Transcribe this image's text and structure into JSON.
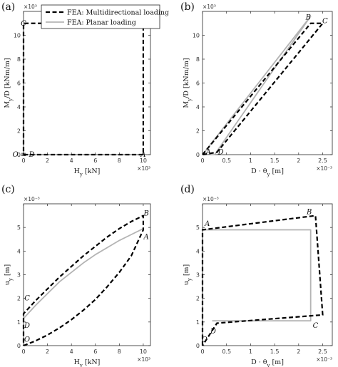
{
  "legend": {
    "entries": [
      {
        "label": "FEA: Multidirectional loading",
        "color": "#000000",
        "style": "dashed"
      },
      {
        "label": "FEA: Planar loading",
        "color": "#b4b4b4",
        "style": "solid"
      }
    ],
    "placement": "top-center"
  },
  "chart_data": [
    {
      "type": "line",
      "panel_label": "(a)",
      "xlabel": "H_y [kN]",
      "ylabel": "M_y/D [kNm/m]",
      "xlim": [
        0,
        10.6
      ],
      "ylim": [
        0,
        12
      ],
      "x_exponent": "×10³",
      "y_exponent": "×10³",
      "xticks": [
        0,
        2,
        4,
        6,
        8,
        10
      ],
      "yticks": [
        0,
        2,
        4,
        6,
        8,
        10
      ],
      "series": [
        {
          "name": "FEA: Multidirectional loading",
          "x": [
            0,
            10,
            10,
            0,
            0
          ],
          "y": [
            0,
            0,
            11,
            11,
            0
          ]
        }
      ],
      "annotations": [
        {
          "text": "C",
          "x": 0,
          "y": 11
        },
        {
          "text": "B",
          "x": 10,
          "y": 11
        },
        {
          "text": "O ≡ D",
          "x": 0,
          "y": 0
        },
        {
          "text": "A",
          "x": 10,
          "y": 0
        }
      ]
    },
    {
      "type": "line",
      "panel_label": "(b)",
      "xlabel": "D · θ_y [m]",
      "ylabel": "M_y/D [kNm/m]",
      "xlim": [
        0,
        2.7
      ],
      "ylim": [
        0,
        12
      ],
      "x_exponent": "×10⁻³",
      "y_exponent": "×10³",
      "xticks": [
        0,
        0.5,
        1,
        1.5,
        2,
        2.5
      ],
      "yticks": [
        0,
        2,
        4,
        6,
        8,
        10
      ],
      "series": [
        {
          "name": "FEA: Multidirectional loading",
          "x": [
            0,
            2.25,
            2.5,
            0.3,
            0
          ],
          "y": [
            0,
            11,
            11,
            0.2,
            0
          ]
        },
        {
          "name": "FEA: Planar loading",
          "x": [
            0,
            2.25,
            0.25,
            0
          ],
          "y": [
            0,
            11.6,
            0,
            0
          ]
        }
      ],
      "annotations": [
        {
          "text": "B",
          "x": 2.2,
          "y": 11.5
        },
        {
          "text": "C",
          "x": 2.55,
          "y": 11.2
        },
        {
          "text": "A",
          "x": 0.12,
          "y": 0.2
        },
        {
          "text": "D",
          "x": 0.38,
          "y": 0.2
        }
      ]
    },
    {
      "type": "line",
      "panel_label": "(c)",
      "xlabel": "H_y [kN]",
      "ylabel": "u_y [m]",
      "xlim": [
        0,
        10.6
      ],
      "ylim": [
        0,
        6
      ],
      "x_exponent": "×10³",
      "y_exponent": "×10⁻³",
      "xticks": [
        0,
        2,
        4,
        6,
        8,
        10
      ],
      "yticks": [
        0,
        1,
        2,
        3,
        4,
        5
      ],
      "series": [
        {
          "name": "FEA: Multidirectional loading",
          "x": [
            0,
            1,
            2,
            3,
            4,
            5,
            6,
            7,
            8,
            9,
            10,
            10,
            9,
            8,
            7,
            6,
            5,
            4,
            3,
            2,
            1,
            0,
            0
          ],
          "y": [
            0,
            0.2,
            0.45,
            0.75,
            1.1,
            1.5,
            1.95,
            2.5,
            3.1,
            3.8,
            4.9,
            5.5,
            5.25,
            4.95,
            4.6,
            4.2,
            3.8,
            3.35,
            2.9,
            2.4,
            1.9,
            1.35,
            0
          ]
        },
        {
          "name": "FEA: Planar loading",
          "x": [
            0,
            1,
            2,
            3,
            4,
            5,
            6,
            7,
            8,
            9,
            10
          ],
          "y": [
            1.15,
            1.7,
            2.2,
            2.7,
            3.1,
            3.5,
            3.85,
            4.15,
            4.45,
            4.7,
            4.95
          ]
        }
      ],
      "annotations": [
        {
          "text": "B",
          "x": 10.25,
          "y": 5.6
        },
        {
          "text": "A",
          "x": 10.25,
          "y": 4.6
        },
        {
          "text": "C",
          "x": 0.3,
          "y": 2.0
        },
        {
          "text": "D",
          "x": 0.3,
          "y": 0.85
        },
        {
          "text": "O",
          "x": 0.3,
          "y": 0.25
        }
      ]
    },
    {
      "type": "line",
      "panel_label": "(d)",
      "xlabel": "D · θ_y [m]",
      "ylabel": "u_y [m]",
      "xlim": [
        0,
        2.7
      ],
      "ylim": [
        0,
        6
      ],
      "x_exponent": "×10⁻³",
      "y_exponent": "×10⁻³",
      "xticks": [
        0,
        0.5,
        1,
        1.5,
        2,
        2.5
      ],
      "yticks": [
        0,
        1,
        2,
        3,
        4,
        5
      ],
      "series": [
        {
          "name": "FEA: Multidirectional loading",
          "x": [
            0,
            0,
            2.35,
            2.5,
            0.3,
            0
          ],
          "y": [
            0,
            4.9,
            5.5,
            1.3,
            0.95,
            0
          ]
        },
        {
          "name": "FEA: Planar loading",
          "x": [
            0,
            2.25,
            2.25,
            0.2
          ],
          "y": [
            4.9,
            4.9,
            1.05,
            1.05
          ]
        }
      ],
      "annotations": [
        {
          "text": "A",
          "x": 0.1,
          "y": 5.15
        },
        {
          "text": "B",
          "x": 2.22,
          "y": 5.65
        },
        {
          "text": "C",
          "x": 2.35,
          "y": 0.85
        },
        {
          "text": "D",
          "x": 0.22,
          "y": 0.6
        },
        {
          "text": "O",
          "x": 0.04,
          "y": 0.25
        }
      ]
    }
  ]
}
